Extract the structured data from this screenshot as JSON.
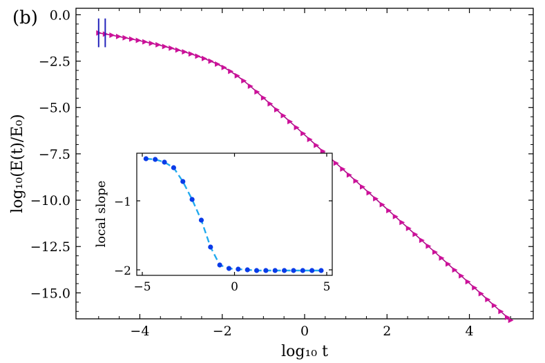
{
  "panel_label": "(b)",
  "chart_data": [
    {
      "type": "line",
      "xlabel": "log₁₀ t",
      "ylabel": "log₁₀(E(t)/E₀)",
      "xlim": [
        -5.55,
        5.55
      ],
      "ylim": [
        -16.4,
        0.35
      ],
      "xticks": [
        -4,
        -2,
        0,
        2,
        4
      ],
      "xtick_labels": [
        "−4",
        "−2",
        "0",
        "2",
        "4"
      ],
      "yticks": [
        0.0,
        -2.5,
        -5.0,
        -7.5,
        -10.0,
        -12.5,
        -15.0
      ],
      "ytick_labels": [
        "0.0",
        "−2.5",
        "−5.0",
        "−7.5",
        "−10.0",
        "−12.5",
        "−15.0"
      ],
      "grid": false,
      "markers": {
        "shape": "triangle-right",
        "color": "#cc1199"
      },
      "line_color": "#aa1188",
      "vertical_markers": {
        "color": "#2222bb",
        "x": [
          -5.0,
          -4.84
        ]
      },
      "series": [
        {
          "x": [
            -5.0,
            -4.84,
            -4.68,
            -4.52,
            -4.36,
            -4.2,
            -4.04,
            -3.88,
            -3.72,
            -3.56,
            -3.4,
            -3.24,
            -3.08,
            -2.92,
            -2.76,
            -2.6,
            -2.44,
            -2.28,
            -2.12,
            -1.96,
            -1.8,
            -1.64,
            -1.48,
            -1.32,
            -1.16,
            -1.0,
            -0.84,
            -0.68,
            -0.52,
            -0.36,
            -0.2,
            -0.04,
            0.12,
            0.28,
            0.44,
            0.6,
            0.76,
            0.92,
            1.08,
            1.24,
            1.4,
            1.56,
            1.72,
            1.88,
            2.04,
            2.2,
            2.36,
            2.52,
            2.68,
            2.84,
            3.0,
            3.16,
            3.32,
            3.48,
            3.64,
            3.8,
            3.96,
            4.12,
            4.28,
            4.44,
            4.6,
            4.76,
            4.92,
            5.0
          ],
          "y": [
            -0.98,
            -1.04,
            -1.1,
            -1.17,
            -1.24,
            -1.31,
            -1.38,
            -1.46,
            -1.54,
            -1.62,
            -1.71,
            -1.8,
            -1.9,
            -2.0,
            -2.11,
            -2.23,
            -2.36,
            -2.5,
            -2.66,
            -2.84,
            -3.05,
            -3.29,
            -3.56,
            -3.85,
            -4.16,
            -4.48,
            -4.8,
            -5.12,
            -5.44,
            -5.76,
            -6.08,
            -6.4,
            -6.72,
            -7.04,
            -7.36,
            -7.68,
            -8.0,
            -8.32,
            -8.64,
            -8.96,
            -9.28,
            -9.6,
            -9.92,
            -10.24,
            -10.56,
            -10.88,
            -11.2,
            -11.52,
            -11.84,
            -12.16,
            -12.48,
            -12.8,
            -13.12,
            -13.44,
            -13.76,
            -14.08,
            -14.4,
            -14.72,
            -15.04,
            -15.36,
            -15.68,
            -16.0,
            -16.32,
            -16.48
          ]
        }
      ]
    },
    {
      "type": "line",
      "inset": true,
      "ylabel": "local slope",
      "xlim": [
        -5.3,
        5.3
      ],
      "ylim": [
        -2.08,
        -0.31
      ],
      "xticks": [
        -5,
        0,
        5
      ],
      "xtick_labels": [
        "−5",
        "0",
        "5"
      ],
      "yticks": [
        -1,
        -2
      ],
      "ytick_labels": [
        "−1",
        "−2"
      ],
      "line_style": "dashed",
      "line_color": "#22aaee",
      "marker_color": "#0a3be8",
      "series": [
        {
          "x": [
            -4.8,
            -4.3,
            -3.8,
            -3.3,
            -2.8,
            -2.3,
            -1.8,
            -1.3,
            -0.8,
            -0.3,
            0.2,
            0.7,
            1.2,
            1.7,
            2.2,
            2.7,
            3.2,
            3.7,
            4.2,
            4.7
          ],
          "y": [
            -0.39,
            -0.4,
            -0.44,
            -0.52,
            -0.72,
            -0.98,
            -1.28,
            -1.67,
            -1.93,
            -1.98,
            -1.99,
            -2.0,
            -2.01,
            -2.01,
            -2.01,
            -2.01,
            -2.01,
            -2.01,
            -2.01,
            -2.01
          ]
        }
      ]
    }
  ]
}
